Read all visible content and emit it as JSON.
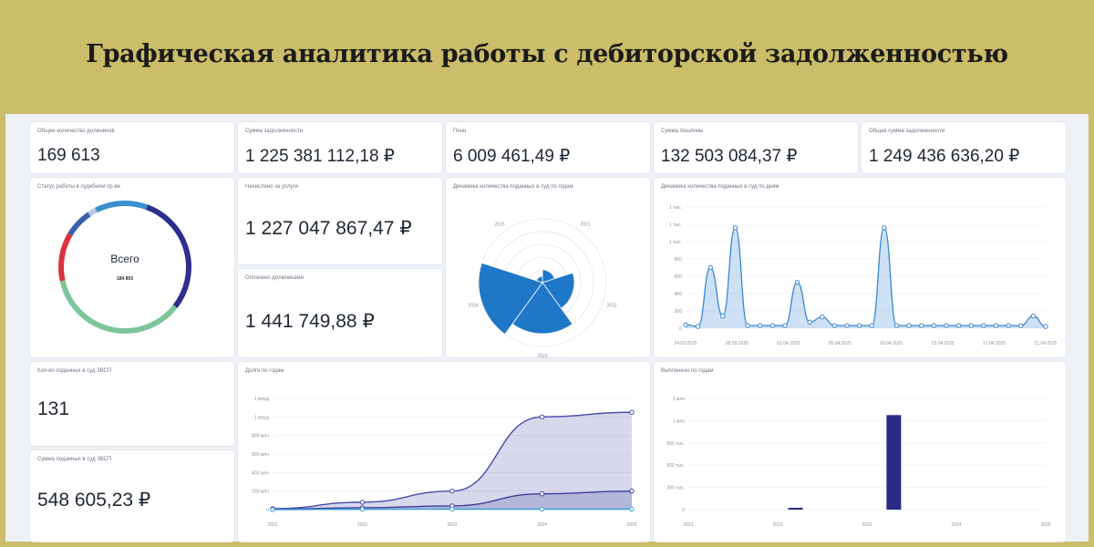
{
  "header": {
    "title": "Графическая аналитика работы с дебиторской задолженностью"
  },
  "kpi": [
    {
      "label": "Общее количество должников",
      "value": "169 613"
    },
    {
      "label": "Сумма задолженности",
      "value": "1 225 381 112,18 ₽"
    },
    {
      "label": "Пени",
      "value": "6 009 461,49 ₽"
    },
    {
      "label": "Сумма пошлины",
      "value": "132 503 084,37 ₽"
    },
    {
      "label": "Общая сумма задолженности",
      "value": "1 249 436 636,20 ₽"
    }
  ],
  "accrued": {
    "label": "Начислено за услуги",
    "value": "1 227 047 867,47 ₽"
  },
  "paid": {
    "label": "Оплачено должниками",
    "value": "1 441 749,88 ₽"
  },
  "zvsp_count": {
    "label": "Кол-во поданных в суд ЗВСП",
    "value": "131"
  },
  "zvsp_sum": {
    "label": "Сумма поданных в суд ЗВСП",
    "value": "548 605,23 ₽"
  },
  "donut": {
    "title": "Статус работы в судебном пр-ве",
    "center_label": "Всего",
    "center_value": "184 803",
    "colors": [
      "#2e2e8f",
      "#7cc69a",
      "#d9333f",
      "#3a5fae",
      "#b9c8e0",
      "#3a8fd0"
    ],
    "shares": [
      0.3,
      0.36,
      0.12,
      0.07,
      0.02,
      0.13
    ]
  },
  "chart_data": [
    {
      "type": "area",
      "title": "Динамика количества поданных в суд по годам",
      "chart_kind": "polar-area",
      "categories": [
        "2021",
        "2022",
        "2023",
        "2024",
        "2025"
      ],
      "values": [
        2,
        5,
        8,
        10,
        1
      ],
      "rmax": 10,
      "color": "#1f77c8"
    },
    {
      "type": "area",
      "title": "Динамика количества поданных в суд по дням",
      "x_ticks": [
        "24.03.2025",
        "28.03.2025",
        "01.04.2025",
        "05.04.2025",
        "09.04.2025",
        "13.04.2025",
        "17.04.2025",
        "21.04.2025"
      ],
      "y_ticks": [
        "0",
        "200",
        "400",
        "600",
        "800",
        "1 тыс.",
        "1 тыс.",
        "1 тыс."
      ],
      "ylim": [
        0,
        1400
      ],
      "x": [
        0,
        1,
        2,
        3,
        4,
        5,
        6,
        7,
        8,
        9,
        10,
        11,
        12,
        13,
        14,
        15,
        16,
        17,
        18,
        19,
        20,
        21,
        22,
        23,
        24,
        25,
        26,
        27,
        28,
        29
      ],
      "values": [
        40,
        20,
        700,
        140,
        1160,
        30,
        30,
        30,
        30,
        530,
        70,
        130,
        30,
        30,
        30,
        30,
        1160,
        30,
        30,
        30,
        30,
        30,
        30,
        30,
        30,
        30,
        30,
        30,
        140,
        20
      ],
      "color": "#3a86d4"
    },
    {
      "type": "area",
      "title": "Долги по годам",
      "categories": [
        "2021",
        "2022",
        "2023",
        "2024",
        "2025"
      ],
      "y_ticks": [
        "0",
        "200 млн",
        "400 млн",
        "600 млн",
        "800 млн",
        "1 млрд",
        "1 млрд"
      ],
      "ylim": [
        0,
        1200
      ],
      "series": [
        {
          "values": [
            10,
            80,
            200,
            1000,
            1050
          ],
          "color": "#4a4ca8"
        },
        {
          "values": [
            5,
            20,
            40,
            170,
            200
          ],
          "color": "#3d3f9a"
        },
        {
          "values": [
            0,
            3,
            5,
            5,
            5
          ],
          "color": "#3aa0d8"
        }
      ]
    },
    {
      "type": "bar",
      "title": "Выплачено по годам",
      "x_ticks": [
        "2021",
        "2022",
        "2023",
        "2024",
        "2025"
      ],
      "y_ticks": [
        "0",
        "300 тыс.",
        "600 тыс.",
        "900 тыс.",
        "1 млн",
        "2 млн"
      ],
      "ylim": [
        0,
        2000000
      ],
      "bars": [
        {
          "x": 2022.2,
          "value": 30000
        },
        {
          "x": 2023.3,
          "value": 1700000
        }
      ],
      "color": "#2a2a86"
    }
  ]
}
